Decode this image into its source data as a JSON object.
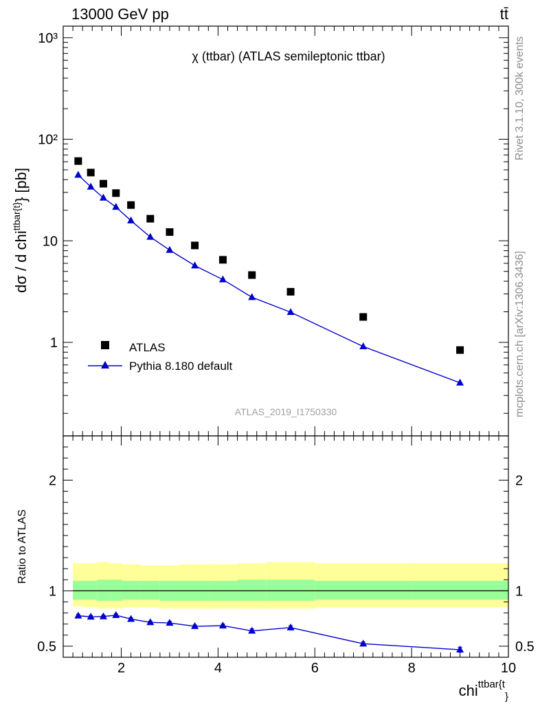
{
  "header": {
    "left": "13000 GeV pp",
    "right": "tt̄"
  },
  "side_labels": {
    "rivet": "Rivet 3.1.10,  300k events",
    "mcplots": "mcplots.cern.ch [arXiv:1306.3436]"
  },
  "watermark": "ATLAS_2019_I1750330",
  "chart_data": [
    {
      "type": "scatter",
      "title": "χ (ttbar) (ATLAS semileptonic ttbar)",
      "ylabel": "dσ / d chi^{ttbar{t}} [pb]",
      "xlim": [
        0.8,
        10.0
      ],
      "ylim": [
        0.12,
        1300
      ],
      "yscale": "log",
      "y_ticks": [
        "1",
        "10",
        "10²",
        "10³"
      ],
      "series": [
        {
          "name": "ATLAS",
          "marker": "square",
          "color": "#000000",
          "x": [
            1.11,
            1.37,
            1.63,
            1.89,
            2.2,
            2.6,
            3.0,
            3.52,
            4.1,
            4.7,
            5.5,
            7.0,
            9.0
          ],
          "y": [
            61,
            47,
            36.5,
            29.5,
            22.5,
            16.5,
            12.2,
            9.0,
            6.5,
            4.6,
            3.15,
            1.78,
            0.84
          ]
        },
        {
          "name": "Pythia 8.180 default",
          "marker": "triangle",
          "color": "#0000cc",
          "x": [
            1.11,
            1.37,
            1.63,
            1.89,
            2.2,
            2.6,
            3.0,
            3.52,
            4.1,
            4.7,
            5.5,
            7.0,
            9.0
          ],
          "y": [
            44.5,
            34.0,
            26.5,
            21.5,
            15.8,
            10.9,
            8.1,
            5.7,
            4.15,
            2.78,
            1.98,
            0.91,
            0.4
          ]
        }
      ],
      "legend": "bottom-left"
    },
    {
      "type": "line",
      "xlabel": "chi^{ttbar{t}}",
      "ylabel": "Ratio to ATLAS",
      "xlim": [
        0.8,
        10.0
      ],
      "ylim": [
        0.4,
        2.4
      ],
      "y_ticks": [
        "0.5",
        "1",
        "2"
      ],
      "x_ticks": [
        "2",
        "4",
        "6",
        "8",
        "10"
      ],
      "reference": 1.0,
      "bands": {
        "outer_color": "#ffff99",
        "inner_color": "#99ff99",
        "edges": [
          1.0,
          1.24,
          1.5,
          1.76,
          2.02,
          2.4,
          2.8,
          3.2,
          3.84,
          4.4,
          5.0,
          6.0,
          8.0,
          10.0
        ],
        "outer_low": [
          0.86,
          0.85,
          0.84,
          0.84,
          0.85,
          0.85,
          0.84,
          0.84,
          0.84,
          0.84,
          0.84,
          0.85,
          0.85
        ],
        "outer_high": [
          1.25,
          1.25,
          1.26,
          1.25,
          1.24,
          1.23,
          1.23,
          1.24,
          1.24,
          1.25,
          1.26,
          1.25,
          1.25
        ],
        "inner_low": [
          0.92,
          0.92,
          0.91,
          0.91,
          0.92,
          0.92,
          0.91,
          0.91,
          0.91,
          0.91,
          0.91,
          0.92,
          0.92
        ],
        "inner_high": [
          1.09,
          1.09,
          1.1,
          1.1,
          1.09,
          1.09,
          1.09,
          1.09,
          1.09,
          1.1,
          1.1,
          1.09,
          1.09
        ]
      },
      "series": [
        {
          "name": "Pythia 8.180 default",
          "color": "#0000cc",
          "x": [
            1.11,
            1.37,
            1.63,
            1.89,
            2.2,
            2.6,
            3.0,
            3.52,
            4.1,
            4.7,
            5.5,
            7.0,
            9.0
          ],
          "y": [
            0.775,
            0.765,
            0.768,
            0.78,
            0.745,
            0.715,
            0.71,
            0.68,
            0.685,
            0.638,
            0.668,
            0.522,
            0.468
          ],
          "err": [
            0.012,
            0.012,
            0.012,
            0.012,
            0.012,
            0.012,
            0.012,
            0.012,
            0.014,
            0.018,
            0.016,
            0.016,
            0.022
          ]
        }
      ]
    }
  ]
}
